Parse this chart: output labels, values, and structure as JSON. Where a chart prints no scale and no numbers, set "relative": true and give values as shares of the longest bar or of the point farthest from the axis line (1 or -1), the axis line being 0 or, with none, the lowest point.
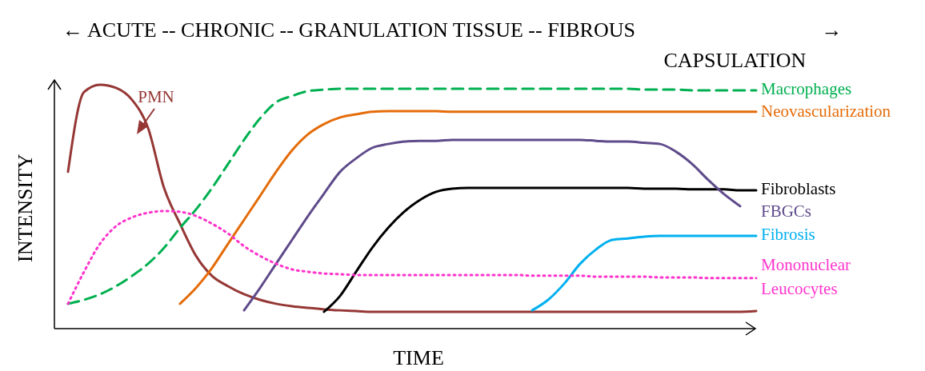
{
  "chart_data": {
    "type": "line",
    "relative": true,
    "title": "← ACUTE -- CHRONIC -- GRANULATION TISSUE -- FIBROUS CAPSULATION →",
    "xlabel": "TIME",
    "ylabel": "INTENSITY",
    "categories": [
      null,
      null,
      null,
      null,
      null,
      null,
      null,
      null,
      null,
      null,
      null,
      null,
      null,
      null,
      null,
      null,
      null,
      null,
      null,
      null,
      null,
      null,
      null,
      null,
      null,
      null,
      null,
      null,
      null,
      null,
      null,
      null,
      null,
      null,
      null,
      null,
      null,
      null,
      null,
      null,
      null,
      null,
      null,
      null
    ],
    "series": [
      {
        "name": "PMN",
        "color": "#953735",
        "line_style": "solid",
        "values": [
          0.643,
          0.97,
          1,
          0.987,
          0.938,
          0.823,
          0.577,
          0.43,
          0.298,
          0.216,
          0.174,
          0.141,
          0.118,
          0.102,
          0.092,
          0.085,
          0.079,
          0.075,
          0.072,
          0.069,
          0.069,
          0.069,
          0.069,
          0.069,
          0.069,
          0.069,
          0.069,
          0.069,
          0.069,
          0.069,
          0.069,
          0.069,
          0.069,
          0.069,
          0.069,
          0.069,
          0.069,
          0.069,
          0.069,
          0.069,
          0.069,
          0.069,
          0.069,
          0.072
        ]
      },
      {
        "name": "Macrophages",
        "color": "#00b050",
        "line_style": "dashed",
        "values": [
          0.102,
          0.118,
          0.141,
          0.174,
          0.216,
          0.266,
          0.331,
          0.413,
          0.489,
          0.577,
          0.675,
          0.774,
          0.862,
          0.928,
          0.954,
          0.974,
          0.98,
          0.984,
          0.984,
          0.984,
          0.984,
          0.984,
          0.984,
          0.984,
          0.984,
          0.984,
          0.984,
          0.984,
          0.984,
          0.984,
          0.984,
          0.984,
          0.984,
          0.984,
          0.984,
          0.984,
          0.98,
          0.98,
          0.98,
          0.977,
          0.977,
          0.977,
          0.977,
          0.977
        ]
      },
      {
        "name": "Neovascularization",
        "color": "#e46c0a",
        "line_style": "solid",
        "values": [
          null,
          null,
          null,
          null,
          null,
          null,
          null,
          0.102,
          0.167,
          0.249,
          0.348,
          0.446,
          0.544,
          0.643,
          0.731,
          0.797,
          0.839,
          0.866,
          0.879,
          0.889,
          0.892,
          0.892,
          0.892,
          0.892,
          0.889,
          0.889,
          0.889,
          0.889,
          0.889,
          0.889,
          0.889,
          0.889,
          0.889,
          0.889,
          0.889,
          0.889,
          0.889,
          0.889,
          0.889,
          0.889,
          0.889,
          0.889,
          0.889,
          0.889
        ]
      },
      {
        "name": "Fibroblasts",
        "color": "#000000",
        "line_style": "solid",
        "values": [
          null,
          null,
          null,
          null,
          null,
          null,
          null,
          null,
          null,
          null,
          null,
          null,
          null,
          null,
          null,
          null,
          0.069,
          0.134,
          0.233,
          0.331,
          0.413,
          0.479,
          0.528,
          0.561,
          0.574,
          0.577,
          0.577,
          0.577,
          0.577,
          0.577,
          0.577,
          0.577,
          0.577,
          0.577,
          0.577,
          0.577,
          0.574,
          0.574,
          0.574,
          0.571,
          0.571,
          0.571,
          0.567,
          0.567
        ]
      },
      {
        "name": "FBGCs",
        "color": "#5f4b8b",
        "line_style": "solid",
        "values": [
          null,
          null,
          null,
          null,
          null,
          null,
          null,
          null,
          null,
          null,
          null,
          0.075,
          0.167,
          0.266,
          0.364,
          0.462,
          0.554,
          0.643,
          0.698,
          0.741,
          0.757,
          0.767,
          0.77,
          0.77,
          0.774,
          0.774,
          0.774,
          0.774,
          0.774,
          0.774,
          0.774,
          0.774,
          0.774,
          0.77,
          0.767,
          0.767,
          0.762,
          0.757,
          0.725,
          0.675,
          0.61,
          0.551,
          0.502,
          null
        ]
      },
      {
        "name": "Fibrosis",
        "color": "#00b0f0",
        "line_style": "solid",
        "values": [
          null,
          null,
          null,
          null,
          null,
          null,
          null,
          null,
          null,
          null,
          null,
          null,
          null,
          null,
          null,
          null,
          null,
          null,
          null,
          null,
          null,
          null,
          null,
          null,
          null,
          null,
          null,
          null,
          null,
          0.075,
          0.118,
          0.184,
          0.266,
          0.325,
          0.364,
          0.37,
          0.377,
          0.38,
          0.38,
          0.38,
          0.38,
          0.38,
          0.38,
          0.38
        ]
      },
      {
        "name": "Mononuclear Leucocytes",
        "color": "#ff33cc",
        "line_style": "dotted",
        "values": [
          0.102,
          0.233,
          0.348,
          0.42,
          0.456,
          0.475,
          0.482,
          0.479,
          0.462,
          0.43,
          0.39,
          0.338,
          0.298,
          0.266,
          0.243,
          0.233,
          0.226,
          0.223,
          0.22,
          0.22,
          0.22,
          0.22,
          0.22,
          0.22,
          0.22,
          0.22,
          0.22,
          0.22,
          0.22,
          0.217,
          0.217,
          0.217,
          0.217,
          0.213,
          0.213,
          0.213,
          0.213,
          0.21,
          0.21,
          0.21,
          0.207,
          0.207,
          0.207,
          0.207
        ]
      }
    ]
  }
}
